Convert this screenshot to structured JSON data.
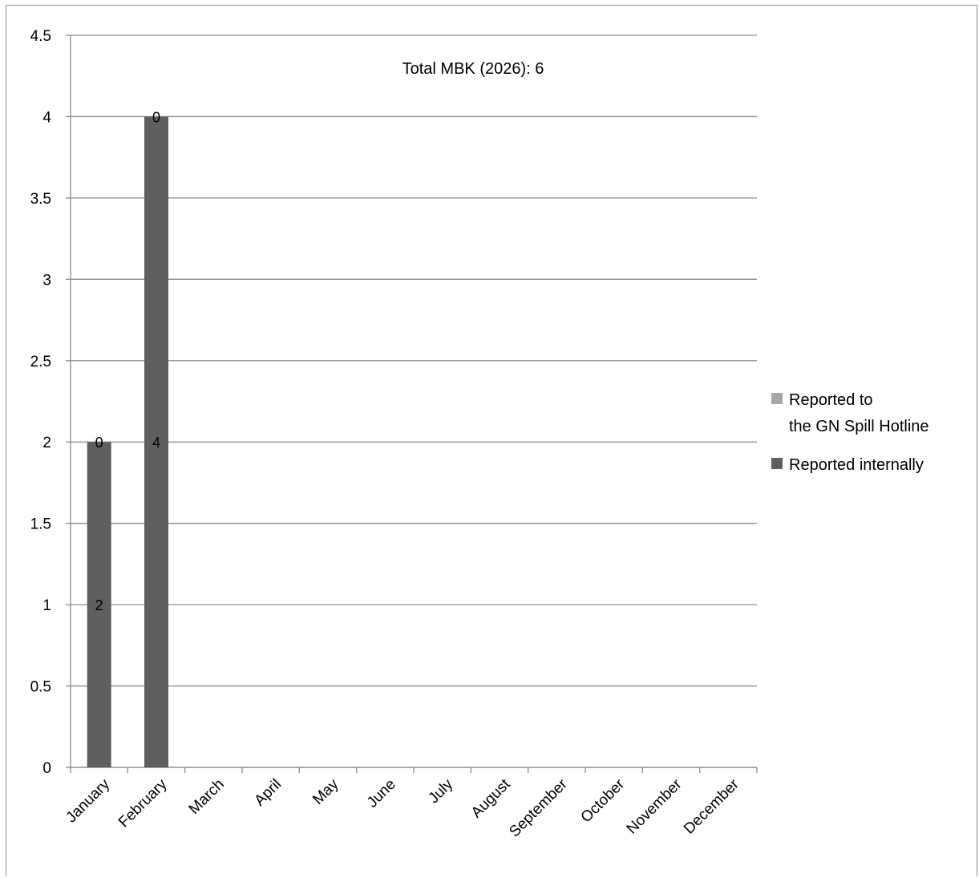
{
  "chart_data": {
    "type": "bar",
    "stacked": true,
    "title": "Total MBK (2026): 6",
    "xlabel": "",
    "ylabel": "",
    "categories": [
      "January",
      "February",
      "March",
      "April",
      "May",
      "June",
      "July",
      "August",
      "September",
      "October",
      "November",
      "December"
    ],
    "series": [
      {
        "name": "Reported internally",
        "color": "#5f5f5f",
        "values": [
          2,
          4,
          0,
          0,
          0,
          0,
          0,
          0,
          0,
          0,
          0,
          0
        ],
        "labels": [
          "2",
          "4",
          "",
          "",
          "",
          "",
          "",
          "",
          "",
          "",
          "",
          ""
        ]
      },
      {
        "name": "Reported to the GN Spill Hotline",
        "legend_lines": [
          "Reported to",
          "the GN Spill Hotline"
        ],
        "color": "#a6a6a6",
        "values": [
          0,
          0,
          0,
          0,
          0,
          0,
          0,
          0,
          0,
          0,
          0,
          0
        ],
        "labels": [
          "0",
          "0",
          "",
          "",
          "",
          "",
          "",
          "",
          "",
          "",
          "",
          ""
        ]
      }
    ],
    "ylim": [
      0,
      4.5
    ],
    "yticks": [
      "0",
      "0.5",
      "1",
      "1.5",
      "2",
      "2.5",
      "3",
      "3.5",
      "4",
      "4.5"
    ],
    "grid": true,
    "legend_position": "right",
    "gridline_color": "#8c8c8c"
  }
}
